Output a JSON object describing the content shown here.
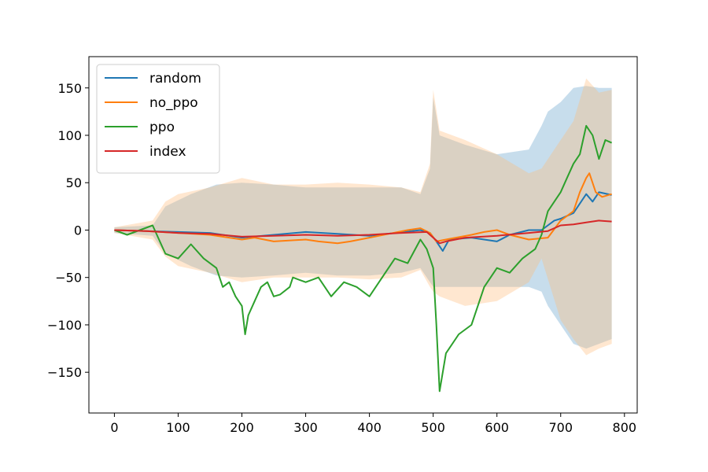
{
  "chart_data": {
    "type": "line",
    "title": "",
    "xlabel": "",
    "ylabel": "",
    "xlim": [
      -40,
      820
    ],
    "ylim": [
      -193,
      183
    ],
    "x_ticks": [
      0,
      100,
      200,
      300,
      400,
      500,
      600,
      700,
      800
    ],
    "x_tick_labels": [
      "0",
      "100",
      "200",
      "300",
      "400",
      "500",
      "600",
      "700",
      "800"
    ],
    "y_ticks": [
      150,
      100,
      50,
      0,
      -50,
      -100,
      -150
    ],
    "y_tick_labels": [
      "150",
      "100",
      "50",
      "0",
      "−50",
      "−100",
      "−150"
    ],
    "grid": false,
    "legend_position": "upper-left",
    "series": [
      {
        "name": "random",
        "color": "#1f77b4",
        "points": [
          [
            0,
            0
          ],
          [
            50,
            -1
          ],
          [
            100,
            -2
          ],
          [
            150,
            -3
          ],
          [
            200,
            -8
          ],
          [
            250,
            -5
          ],
          [
            300,
            -2
          ],
          [
            350,
            -4
          ],
          [
            400,
            -6
          ],
          [
            440,
            -3
          ],
          [
            480,
            0
          ],
          [
            495,
            -3
          ],
          [
            505,
            -12
          ],
          [
            515,
            -22
          ],
          [
            525,
            -10
          ],
          [
            560,
            -8
          ],
          [
            600,
            -12
          ],
          [
            620,
            -5
          ],
          [
            650,
            0
          ],
          [
            670,
            0
          ],
          [
            690,
            10
          ],
          [
            700,
            12
          ],
          [
            720,
            18
          ],
          [
            740,
            38
          ],
          [
            750,
            30
          ],
          [
            760,
            40
          ],
          [
            780,
            37
          ]
        ],
        "band": {
          "color": "#1f77b4",
          "points": [
            [
              0,
              3,
              -3
            ],
            [
              60,
              5,
              -6
            ],
            [
              80,
              25,
              -25
            ],
            [
              120,
              38,
              -38
            ],
            [
              160,
              48,
              -48
            ],
            [
              200,
              50,
              -50
            ],
            [
              250,
              48,
              -48
            ],
            [
              300,
              45,
              -45
            ],
            [
              350,
              45,
              -48
            ],
            [
              400,
              45,
              -48
            ],
            [
              450,
              45,
              -45
            ],
            [
              480,
              38,
              -40
            ],
            [
              495,
              65,
              -55
            ],
            [
              500,
              140,
              -60
            ],
            [
              510,
              100,
              -60
            ],
            [
              550,
              90,
              -60
            ],
            [
              600,
              80,
              -60
            ],
            [
              650,
              85,
              -60
            ],
            [
              670,
              110,
              -65
            ],
            [
              680,
              125,
              -80
            ],
            [
              700,
              135,
              -100
            ],
            [
              720,
              150,
              -120
            ],
            [
              740,
              152,
              -125
            ],
            [
              760,
              150,
              -120
            ],
            [
              780,
              150,
              -115
            ]
          ]
        }
      },
      {
        "name": "no_ppo",
        "color": "#ff7f0e",
        "points": [
          [
            0,
            0
          ],
          [
            50,
            -1
          ],
          [
            100,
            -3
          ],
          [
            150,
            -5
          ],
          [
            200,
            -10
          ],
          [
            220,
            -8
          ],
          [
            250,
            -12
          ],
          [
            300,
            -10
          ],
          [
            320,
            -12
          ],
          [
            350,
            -14
          ],
          [
            370,
            -12
          ],
          [
            400,
            -8
          ],
          [
            430,
            -4
          ],
          [
            460,
            0
          ],
          [
            480,
            2
          ],
          [
            495,
            -3
          ],
          [
            505,
            -12
          ],
          [
            520,
            -10
          ],
          [
            560,
            -5
          ],
          [
            580,
            -2
          ],
          [
            600,
            0
          ],
          [
            620,
            -5
          ],
          [
            650,
            -10
          ],
          [
            680,
            -8
          ],
          [
            700,
            10
          ],
          [
            720,
            20
          ],
          [
            730,
            40
          ],
          [
            740,
            55
          ],
          [
            745,
            60
          ],
          [
            755,
            40
          ],
          [
            765,
            35
          ],
          [
            780,
            38
          ]
        ],
        "band": {
          "color": "#ffbb78",
          "points": [
            [
              0,
              3,
              -3
            ],
            [
              60,
              10,
              -10
            ],
            [
              80,
              30,
              -28
            ],
            [
              100,
              38,
              -38
            ],
            [
              150,
              45,
              -45
            ],
            [
              200,
              55,
              -55
            ],
            [
              250,
              48,
              -50
            ],
            [
              300,
              48,
              -50
            ],
            [
              350,
              50,
              -50
            ],
            [
              400,
              48,
              -52
            ],
            [
              450,
              45,
              -50
            ],
            [
              480,
              40,
              -42
            ],
            [
              495,
              70,
              -60
            ],
            [
              500,
              148,
              -65
            ],
            [
              510,
              105,
              -70
            ],
            [
              550,
              95,
              -80
            ],
            [
              600,
              80,
              -75
            ],
            [
              650,
              60,
              -55
            ],
            [
              670,
              65,
              -30
            ],
            [
              700,
              95,
              -95
            ],
            [
              720,
              115,
              -115
            ],
            [
              740,
              160,
              -132
            ],
            [
              760,
              145,
              -125
            ],
            [
              780,
              148,
              -120
            ]
          ]
        }
      },
      {
        "name": "ppo",
        "color": "#2ca02c",
        "points": [
          [
            0,
            0
          ],
          [
            20,
            -5
          ],
          [
            40,
            0
          ],
          [
            60,
            5
          ],
          [
            80,
            -25
          ],
          [
            100,
            -30
          ],
          [
            120,
            -15
          ],
          [
            140,
            -30
          ],
          [
            160,
            -40
          ],
          [
            170,
            -60
          ],
          [
            180,
            -55
          ],
          [
            190,
            -70
          ],
          [
            200,
            -80
          ],
          [
            205,
            -110
          ],
          [
            210,
            -90
          ],
          [
            220,
            -75
          ],
          [
            230,
            -60
          ],
          [
            240,
            -55
          ],
          [
            250,
            -70
          ],
          [
            260,
            -68
          ],
          [
            275,
            -60
          ],
          [
            280,
            -50
          ],
          [
            300,
            -55
          ],
          [
            320,
            -50
          ],
          [
            340,
            -70
          ],
          [
            360,
            -55
          ],
          [
            380,
            -60
          ],
          [
            400,
            -70
          ],
          [
            420,
            -50
          ],
          [
            440,
            -30
          ],
          [
            460,
            -35
          ],
          [
            480,
            -10
          ],
          [
            490,
            -20
          ],
          [
            495,
            -30
          ],
          [
            500,
            -40
          ],
          [
            505,
            -100
          ],
          [
            510,
            -170
          ],
          [
            520,
            -130
          ],
          [
            540,
            -110
          ],
          [
            560,
            -100
          ],
          [
            570,
            -80
          ],
          [
            580,
            -60
          ],
          [
            600,
            -40
          ],
          [
            620,
            -45
          ],
          [
            640,
            -30
          ],
          [
            660,
            -20
          ],
          [
            670,
            -5
          ],
          [
            680,
            20
          ],
          [
            700,
            40
          ],
          [
            710,
            55
          ],
          [
            720,
            70
          ],
          [
            730,
            80
          ],
          [
            740,
            110
          ],
          [
            750,
            100
          ],
          [
            760,
            75
          ],
          [
            770,
            95
          ],
          [
            780,
            92
          ]
        ]
      },
      {
        "name": "index",
        "color": "#d62728",
        "points": [
          [
            0,
            0
          ],
          [
            50,
            -1
          ],
          [
            100,
            -3
          ],
          [
            150,
            -4
          ],
          [
            200,
            -7
          ],
          [
            250,
            -6
          ],
          [
            300,
            -5
          ],
          [
            350,
            -6
          ],
          [
            400,
            -5
          ],
          [
            450,
            -3
          ],
          [
            490,
            -2
          ],
          [
            500,
            -8
          ],
          [
            510,
            -14
          ],
          [
            520,
            -12
          ],
          [
            550,
            -8
          ],
          [
            600,
            -6
          ],
          [
            650,
            -3
          ],
          [
            680,
            -1
          ],
          [
            700,
            5
          ],
          [
            720,
            6
          ],
          [
            740,
            8
          ],
          [
            760,
            10
          ],
          [
            780,
            9
          ]
        ]
      }
    ]
  }
}
